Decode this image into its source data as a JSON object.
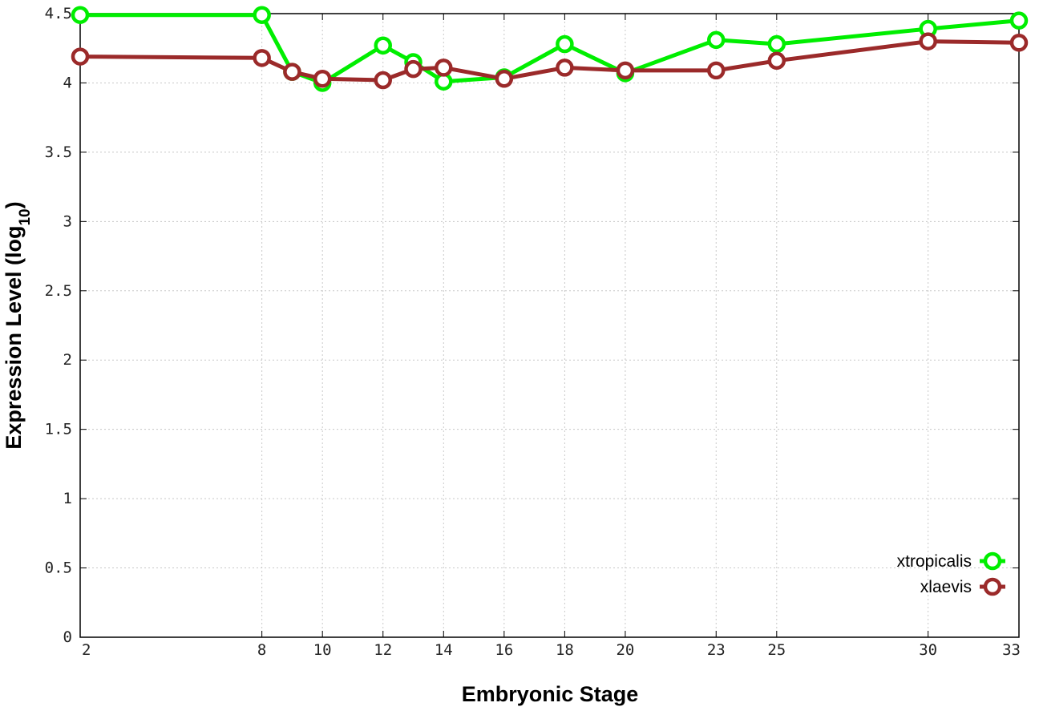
{
  "chart_data": {
    "type": "line",
    "title": "",
    "xlabel": "Embryonic Stage",
    "ylabel_main": "Expression Level (log",
    "ylabel_sub": "10",
    "ylabel_close": ")",
    "x": [
      2,
      8,
      9,
      10,
      12,
      13,
      14,
      16,
      18,
      20,
      23,
      25,
      30,
      33
    ],
    "x_ticks": [
      2,
      8,
      10,
      12,
      14,
      16,
      18,
      20,
      23,
      25,
      30,
      33
    ],
    "y_ticks": [
      "0",
      "0.5",
      "1",
      "1.5",
      "2",
      "2.5",
      "3",
      "3.5",
      "4",
      "4.5"
    ],
    "ylim": [
      0,
      4.5
    ],
    "grid": true,
    "legend_position": "bottom-right",
    "series": [
      {
        "name": "xtropicalis",
        "color": "#00ee00",
        "values": [
          4.49,
          4.49,
          4.08,
          4.0,
          4.27,
          4.15,
          4.01,
          4.04,
          4.28,
          4.07,
          4.31,
          4.28,
          4.39,
          4.45
        ]
      },
      {
        "name": "xlaevis",
        "color": "#9b2a2a",
        "values": [
          4.19,
          4.18,
          4.08,
          4.03,
          4.02,
          4.1,
          4.11,
          4.03,
          4.11,
          4.09,
          4.09,
          4.16,
          4.3,
          4.29
        ]
      }
    ]
  }
}
